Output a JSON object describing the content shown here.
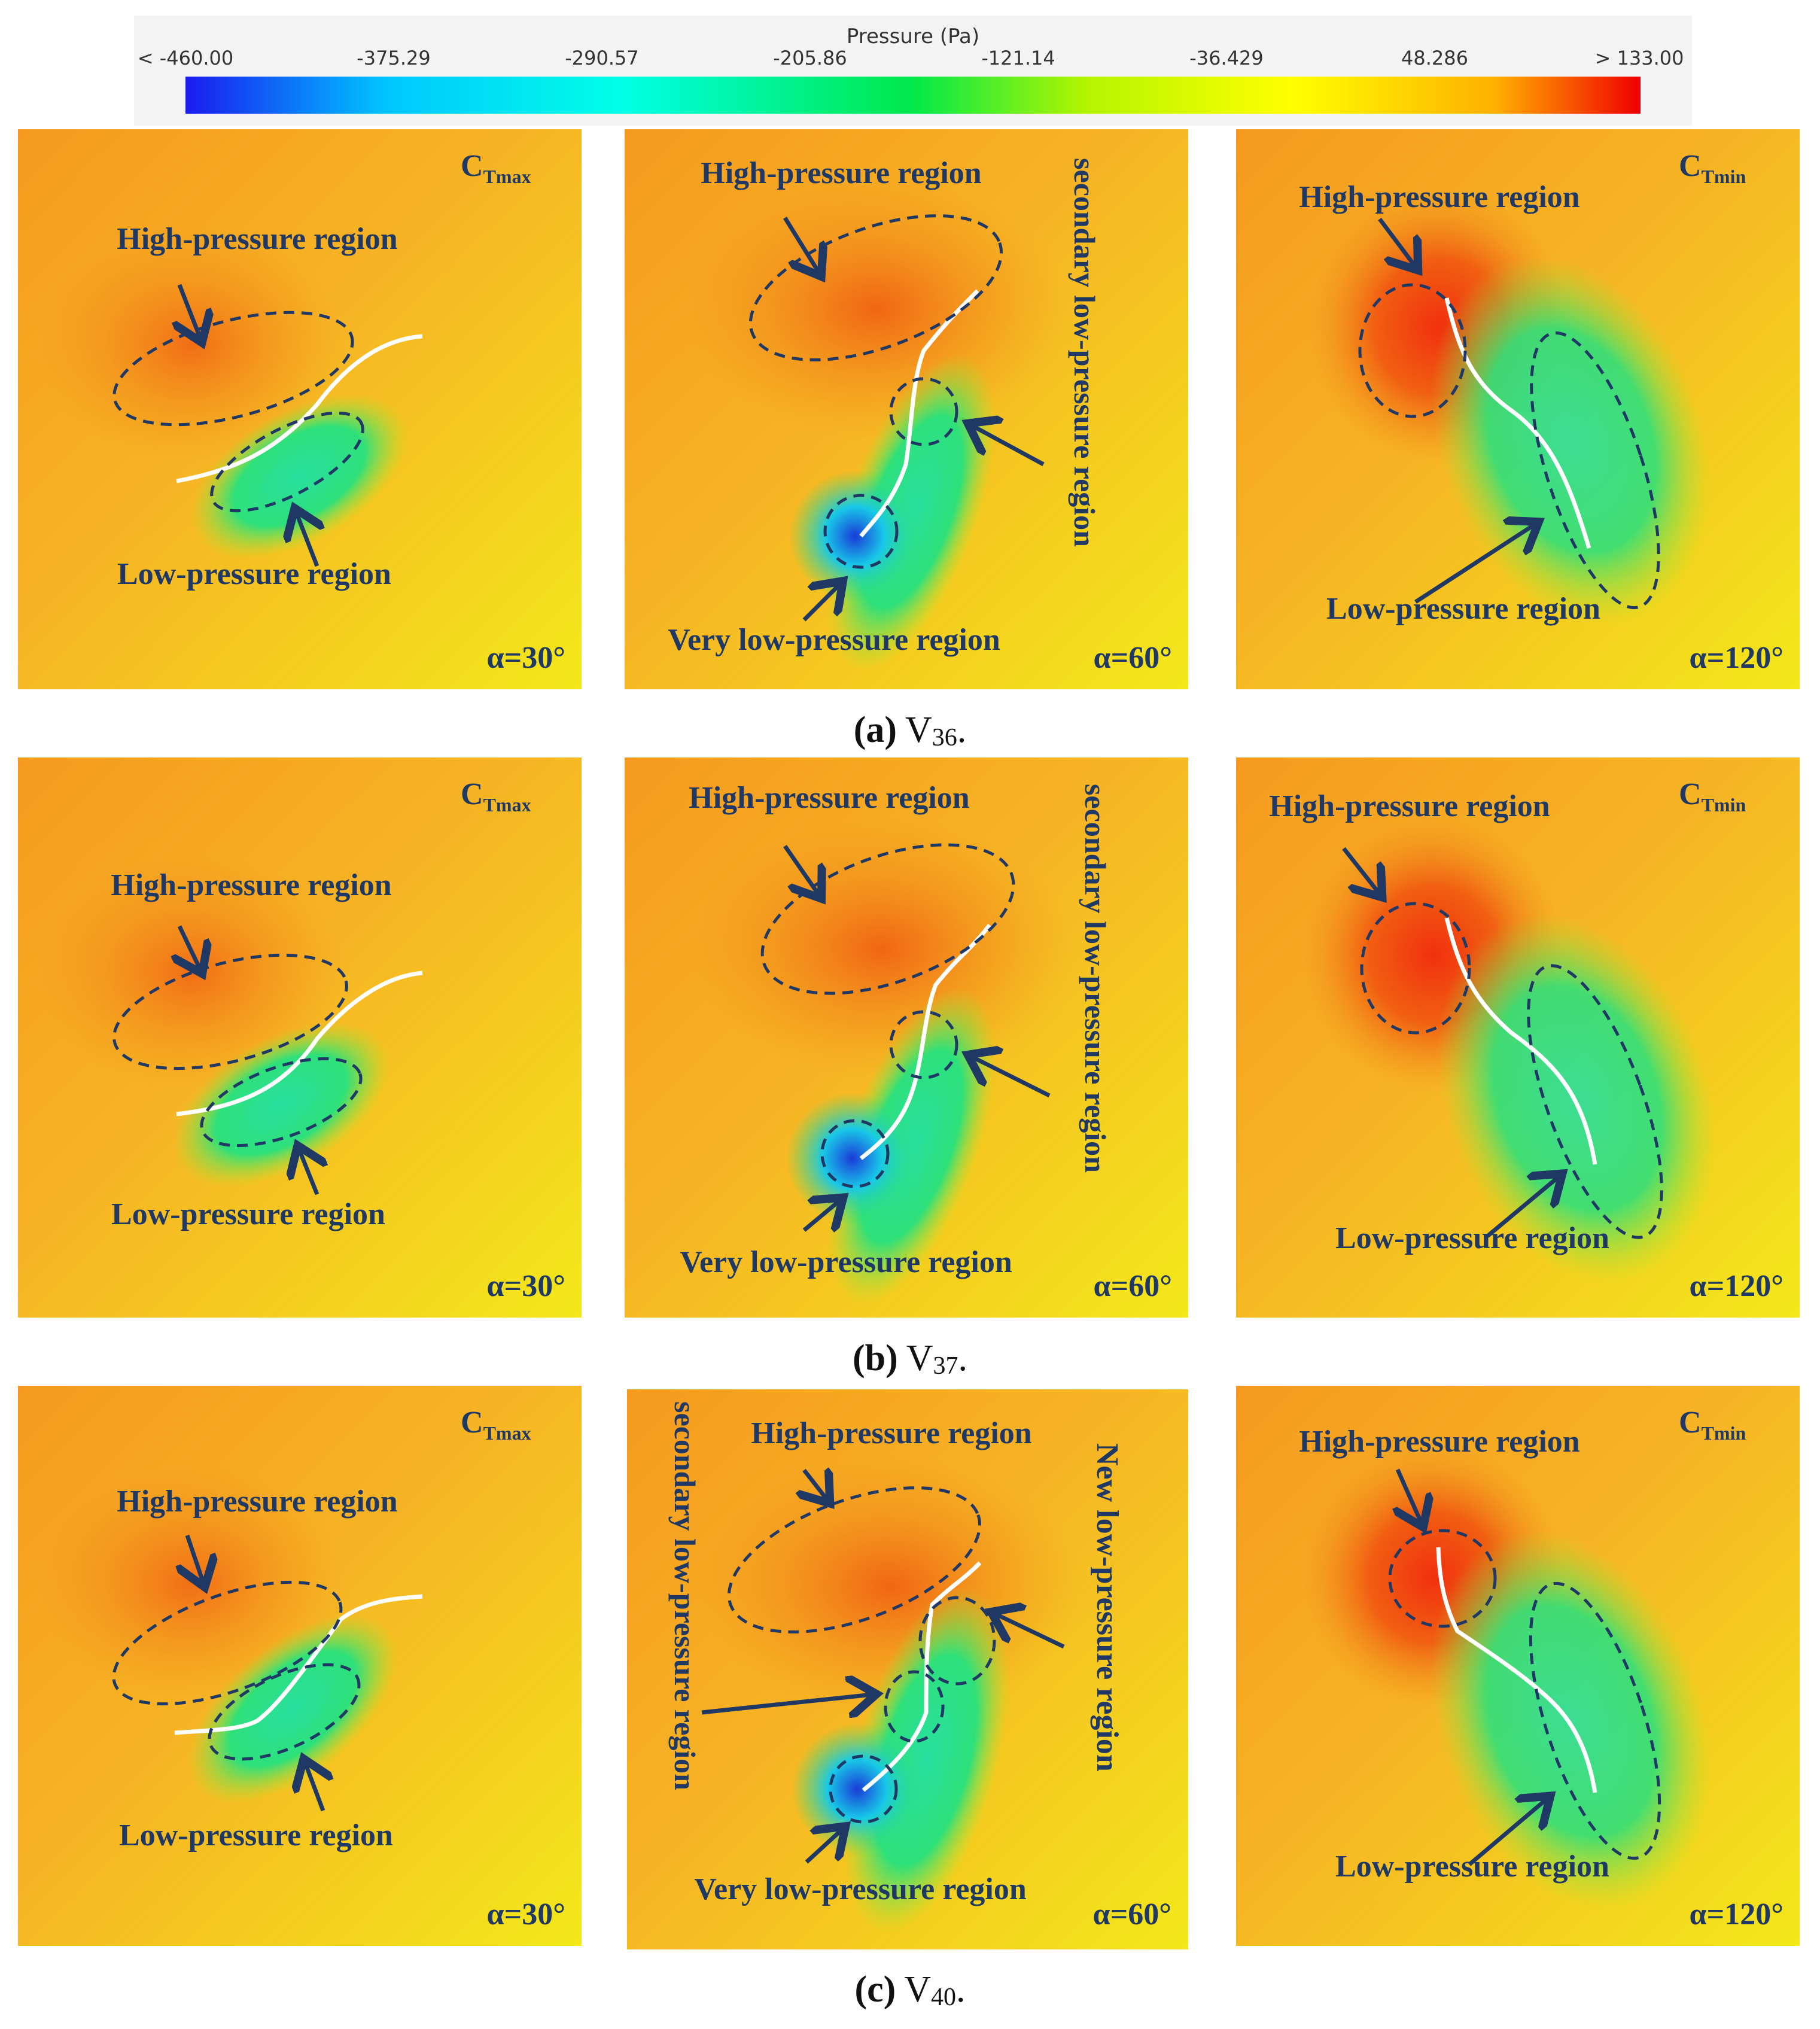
{
  "colorbar": {
    "title": "Pressure (Pa)",
    "ticks": [
      "< -460.00",
      "-375.29",
      "-290.57",
      "-205.86",
      "-121.14",
      "-36.429",
      "48.286",
      "> 133.00"
    ],
    "colors": [
      "#1b1bf0",
      "#00c8ff",
      "#00ffe6",
      "#00e84a",
      "#b5f500",
      "#ffff00",
      "#ffb000",
      "#f00000"
    ]
  },
  "colors": {
    "label": "#1f3864",
    "high": "#f0520f",
    "field_orange": "#f59a1f",
    "field_yellow": "#f3e81a",
    "low": "#2ee07a",
    "very_low": "#1a3cd8",
    "blade": "#ffffff"
  },
  "rows": [
    {
      "caption_letter": "(a)",
      "caption_name": "V",
      "caption_sub": "36",
      "caption_end": ".",
      "panels": [
        {
          "corner": "C",
          "corner_sub": "Tmax",
          "angle": "α=30°",
          "labels": [
            "High-pressure region",
            "Low-pressure region"
          ]
        },
        {
          "angle": "α=60°",
          "labels": [
            "High-pressure region",
            "secondary low-pressure region",
            "Very low-pressure region"
          ]
        },
        {
          "corner": "C",
          "corner_sub": "Tmin",
          "angle": "α=120°",
          "labels": [
            "High-pressure region",
            "Low-pressure region"
          ]
        }
      ]
    },
    {
      "caption_letter": "(b)",
      "caption_name": "V",
      "caption_sub": "37",
      "caption_end": ".",
      "panels": [
        {
          "corner": "C",
          "corner_sub": "Tmax",
          "angle": "α=30°",
          "labels": [
            "High-pressure region",
            "Low-pressure region"
          ]
        },
        {
          "angle": "α=60°",
          "labels": [
            "High-pressure region",
            "secondary low-pressure region",
            "Very low-pressure region"
          ]
        },
        {
          "corner": "C",
          "corner_sub": "Tmin",
          "angle": "α=120°",
          "labels": [
            "High-pressure region",
            "Low-pressure region"
          ]
        }
      ]
    },
    {
      "caption_letter": "(c)",
      "caption_name": "V",
      "caption_sub": "40",
      "caption_end": ".",
      "panels": [
        {
          "corner": "C",
          "corner_sub": "Tmax",
          "angle": "α=30°",
          "labels": [
            "High-pressure region",
            "Low-pressure region"
          ]
        },
        {
          "angle": "α=60°",
          "labels": [
            "High-pressure region",
            "secondary low-pressure region",
            "New low-pressure  region",
            "Very low-pressure region"
          ]
        },
        {
          "corner": "C",
          "corner_sub": "Tmin",
          "angle": "α=120°",
          "labels": [
            "High-pressure region",
            "Low-pressure region"
          ]
        }
      ]
    }
  ]
}
